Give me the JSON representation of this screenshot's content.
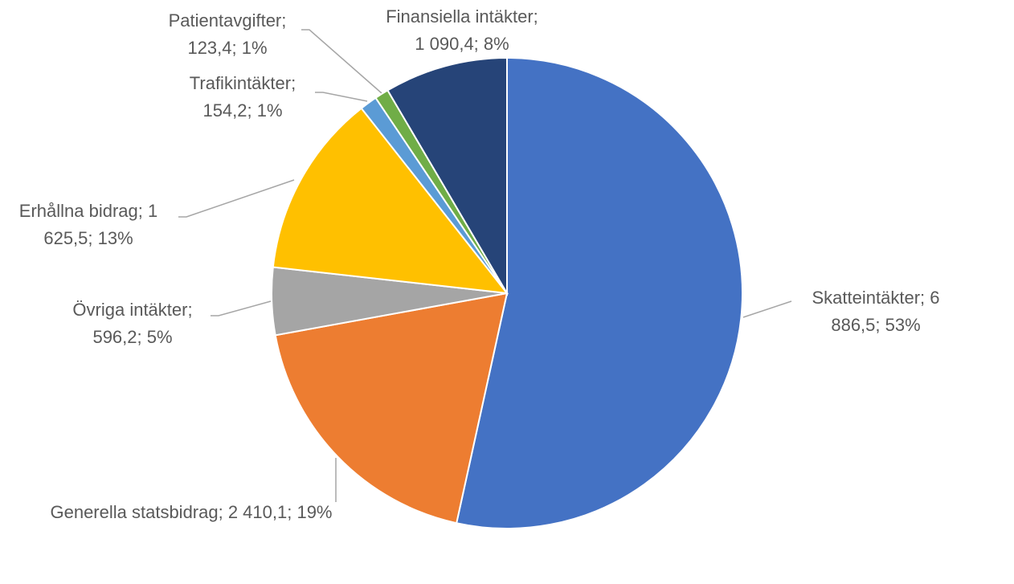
{
  "chart_data": {
    "type": "pie",
    "values": [
      6886.5,
      2410.1,
      596.2,
      1625.5,
      154.2,
      123.4,
      1090.4
    ],
    "colors": [
      "#4472c4",
      "#ed7d31",
      "#a5a5a5",
      "#ffc000",
      "#5b9bd5",
      "#70ad47",
      "#264478"
    ],
    "labels": [
      [
        "Skatteintäkter; 6",
        "886,5; 53%"
      ],
      [
        "Generella statsbidrag; 2 410,1; 19%"
      ],
      [
        "Övriga intäkter;",
        "596,2; 5%"
      ],
      [
        "Erhållna bidrag; 1",
        "625,5; 13%"
      ],
      [
        "Trafikintäkter;",
        "154,2; 1%"
      ],
      [
        "Patientavgifter;",
        "123,4; 1%"
      ],
      [
        "Finansiella intäkter;",
        "1 090,4; 8%"
      ]
    ]
  }
}
